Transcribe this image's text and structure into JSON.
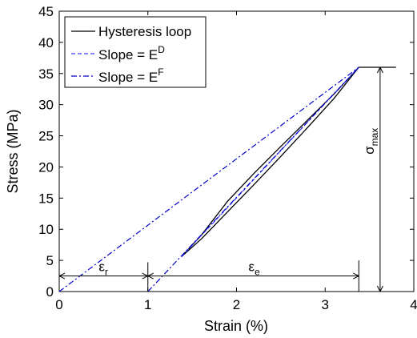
{
  "chart_data": {
    "type": "line",
    "xlabel": "Strain (%)",
    "ylabel": "Stress (MPa)",
    "xlim": [
      0,
      4
    ],
    "ylim": [
      0,
      45
    ],
    "xticks": [
      "0",
      "1",
      "2",
      "3",
      "4"
    ],
    "yticks": [
      "0",
      "5",
      "10",
      "15",
      "20",
      "25",
      "30",
      "35",
      "40",
      "45"
    ],
    "grid": false,
    "legend_position": "top-left",
    "series": [
      {
        "name": "Hysteresis loop",
        "color": "#000000",
        "style": "solid",
        "loading": {
          "x": [
            1.38,
            1.6,
            1.9,
            2.2,
            2.5,
            2.8,
            3.1,
            3.38
          ],
          "y": [
            5.6,
            9.0,
            14.5,
            19.0,
            23.3,
            27.5,
            31.7,
            36.0
          ]
        },
        "unloading": {
          "x": [
            3.38,
            3.1,
            2.8,
            2.5,
            2.2,
            1.9,
            1.6,
            1.38
          ],
          "y": [
            36.0,
            31.0,
            26.3,
            21.7,
            17.2,
            12.8,
            8.4,
            5.6
          ]
        },
        "plateau": {
          "x": [
            3.38,
            3.8
          ],
          "y": [
            36.0,
            36.0
          ]
        }
      },
      {
        "name": "Slope = E^D",
        "name_base": "Slope = E",
        "name_sup": "D",
        "color": "#3a3aff",
        "style": "dashed",
        "x": [
          1.38,
          3.38
        ],
        "y": [
          5.6,
          36.0
        ]
      },
      {
        "name": "Slope = E^F",
        "name_base": "Slope = E",
        "name_sup": "F",
        "color": "#0000cc",
        "style": "dashdot",
        "x": [
          0,
          3.38
        ],
        "y": [
          0,
          36.0
        ],
        "x2": [
          1.0,
          3.38
        ],
        "y2": [
          0,
          36.0
        ]
      }
    ],
    "annotations": {
      "eps_r": {
        "base": "ε",
        "sub": "r",
        "x_from": 0,
        "x_to": 1.0,
        "y": 2.5
      },
      "eps_e": {
        "base": "ε",
        "sub": "e",
        "x_from": 1.0,
        "x_to": 3.38,
        "y": 2.5
      },
      "sigma_max": {
        "base": "σ",
        "sub": "max",
        "x": 3.62,
        "y_from": 0,
        "y_to": 36.0
      }
    }
  }
}
